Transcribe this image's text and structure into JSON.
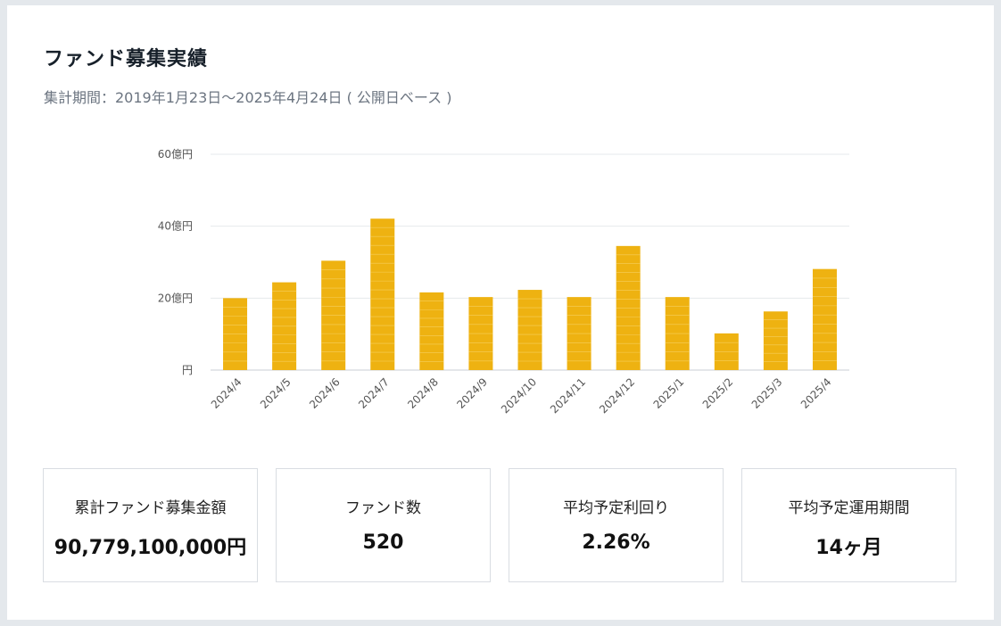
{
  "header": {
    "title": "ファンド募集実績",
    "period": "集計期間：2019年1月23日〜2025年4月24日 ( 公開日ベース )"
  },
  "chart_data": {
    "type": "bar",
    "categories": [
      "2024/4",
      "2024/5",
      "2024/6",
      "2024/7",
      "2024/8",
      "2024/9",
      "2024/10",
      "2024/11",
      "2024/12",
      "2025/1",
      "2025/2",
      "2025/3",
      "2025/4"
    ],
    "values": [
      20,
      24.4,
      30.4,
      42.1,
      21.6,
      20.3,
      22.3,
      20.3,
      34.5,
      20.3,
      10.2,
      16.3,
      28.1
    ],
    "ylim": [
      0,
      60
    ],
    "yticks": [
      0,
      20,
      40,
      60
    ],
    "ytick_labels": [
      "円",
      "20億円",
      "40億円",
      "60億円"
    ],
    "bar_color": "#eeb211",
    "grid": true,
    "title": "",
    "xlabel": "",
    "ylabel": ""
  },
  "stats": [
    {
      "label": "累計ファンド募集金額",
      "value": "90,779,100,000円"
    },
    {
      "label": "ファンド数",
      "value": "520"
    },
    {
      "label": "平均予定利回り",
      "value": "2.26%"
    },
    {
      "label": "平均予定運用期間",
      "value": "14ヶ月"
    }
  ]
}
